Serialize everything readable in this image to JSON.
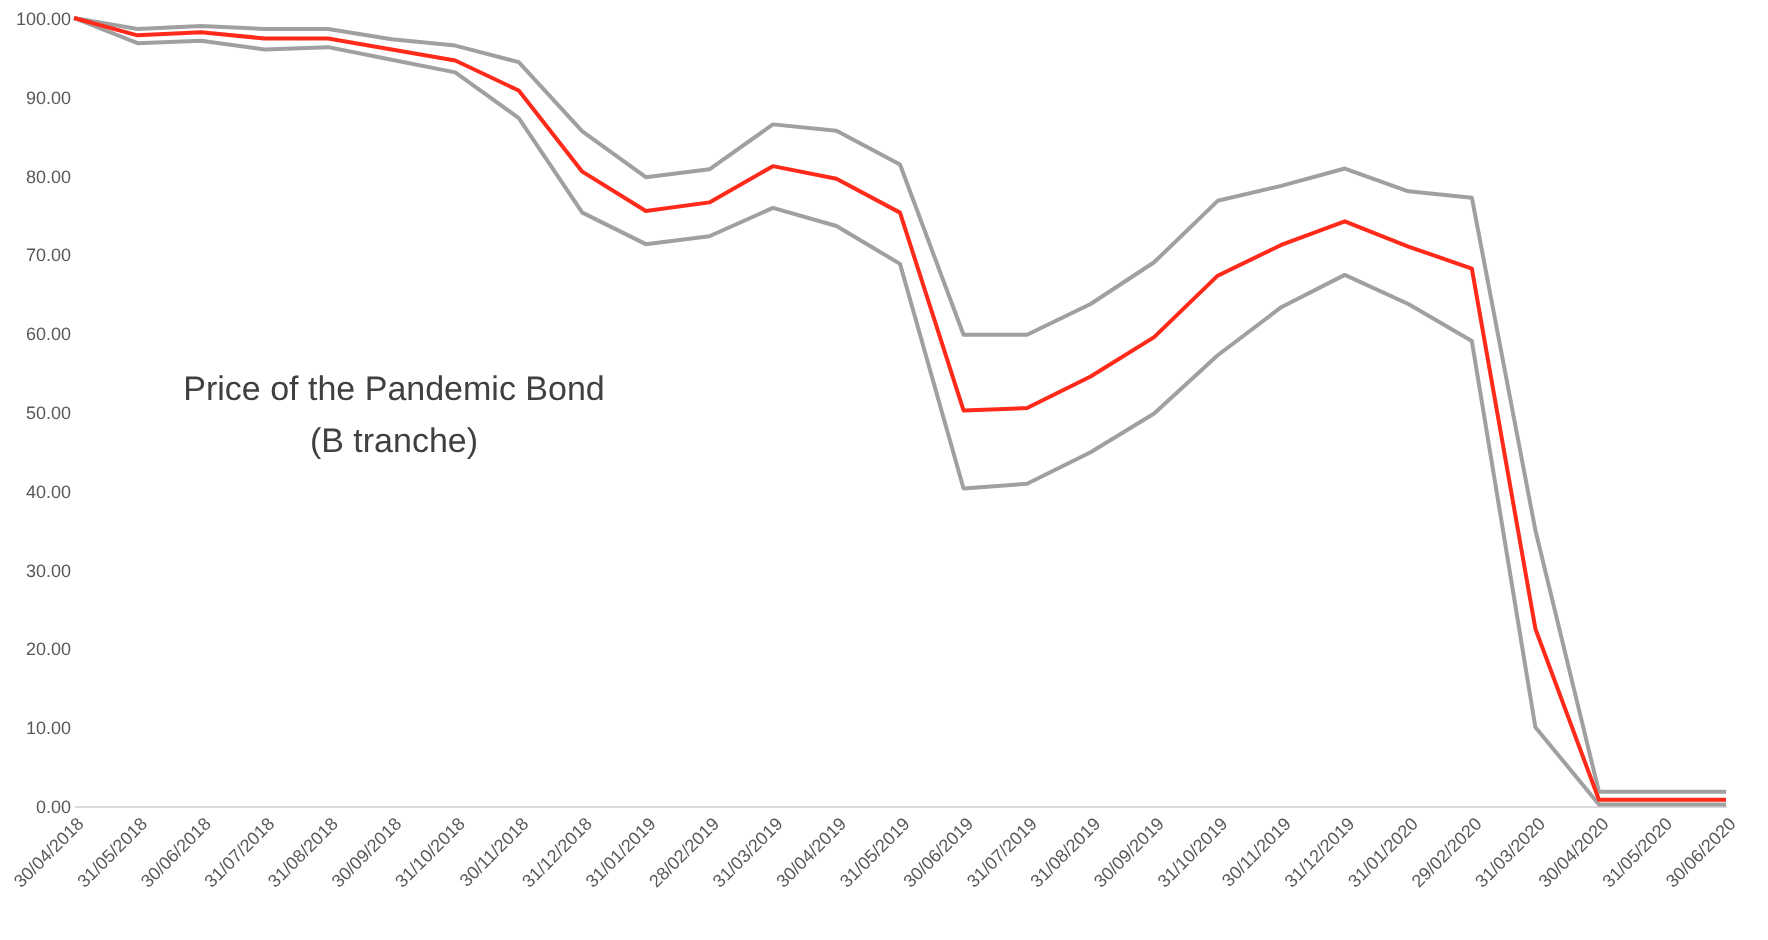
{
  "chart_data": {
    "type": "line",
    "annotations": [
      "Price of the Pandemic Bond",
      "(B tranche)"
    ],
    "categories": [
      "30/04/2018",
      "31/05/2018",
      "30/06/2018",
      "31/07/2018",
      "31/08/2018",
      "30/09/2018",
      "31/10/2018",
      "30/11/2018",
      "31/12/2018",
      "31/01/2019",
      "28/02/2019",
      "31/03/2019",
      "30/04/2019",
      "31/05/2019",
      "30/06/2019",
      "31/07/2019",
      "31/08/2019",
      "30/09/2019",
      "31/10/2019",
      "30/11/2019",
      "31/12/2019",
      "31/01/2020",
      "29/02/2020",
      "31/03/2020",
      "30/04/2020",
      "31/05/2020",
      "30/06/2020"
    ],
    "series": [
      {
        "color": "#a0a0a0",
        "values": [
          100,
          98.6,
          99,
          98.6,
          98.6,
          97.3,
          96.5,
          94.4,
          85.6,
          79.8,
          80.8,
          86.5,
          85.7,
          81.4,
          59.8,
          59.8,
          63.7,
          69,
          76.8,
          78.7,
          80.9,
          78,
          77.2,
          35,
          1.8,
          1.8,
          1.8
        ]
      },
      {
        "color": "#a0a0a0",
        "values": [
          100,
          96.8,
          97.1,
          96,
          96.3,
          94.7,
          93.1,
          87.3,
          75.3,
          71.3,
          72.3,
          75.9,
          73.6,
          68.8,
          40.3,
          40.9,
          44.9,
          49.8,
          57.2,
          63.3,
          67.4,
          63.7,
          59,
          10,
          0.2,
          0.2,
          0.2
        ]
      },
      {
        "color": "#ff2a1a",
        "values": [
          100,
          97.8,
          98.2,
          97.4,
          97.4,
          96,
          94.6,
          90.8,
          80.5,
          75.5,
          76.6,
          81.2,
          79.6,
          75.3,
          50.2,
          50.5,
          54.5,
          59.5,
          67.3,
          71.2,
          74.2,
          71,
          68.2,
          22.5,
          0.8,
          0.8,
          0.8
        ]
      }
    ],
    "ylim": [
      0,
      100
    ],
    "yticks": [
      {
        "value": 0,
        "label": "0.00"
      },
      {
        "value": 10,
        "label": "10.00"
      },
      {
        "value": 20,
        "label": "20.00"
      },
      {
        "value": 30,
        "label": "30.00"
      },
      {
        "value": 40,
        "label": "40.00"
      },
      {
        "value": 50,
        "label": "50.00"
      },
      {
        "value": 60,
        "label": "60.00"
      },
      {
        "value": 70,
        "label": "70.00"
      },
      {
        "value": 80,
        "label": "80.00"
      },
      {
        "value": 90,
        "label": "90.00"
      },
      {
        "value": 100,
        "label": "100.00"
      }
    ],
    "grid": false,
    "marker": "none",
    "line_style": "solid"
  }
}
